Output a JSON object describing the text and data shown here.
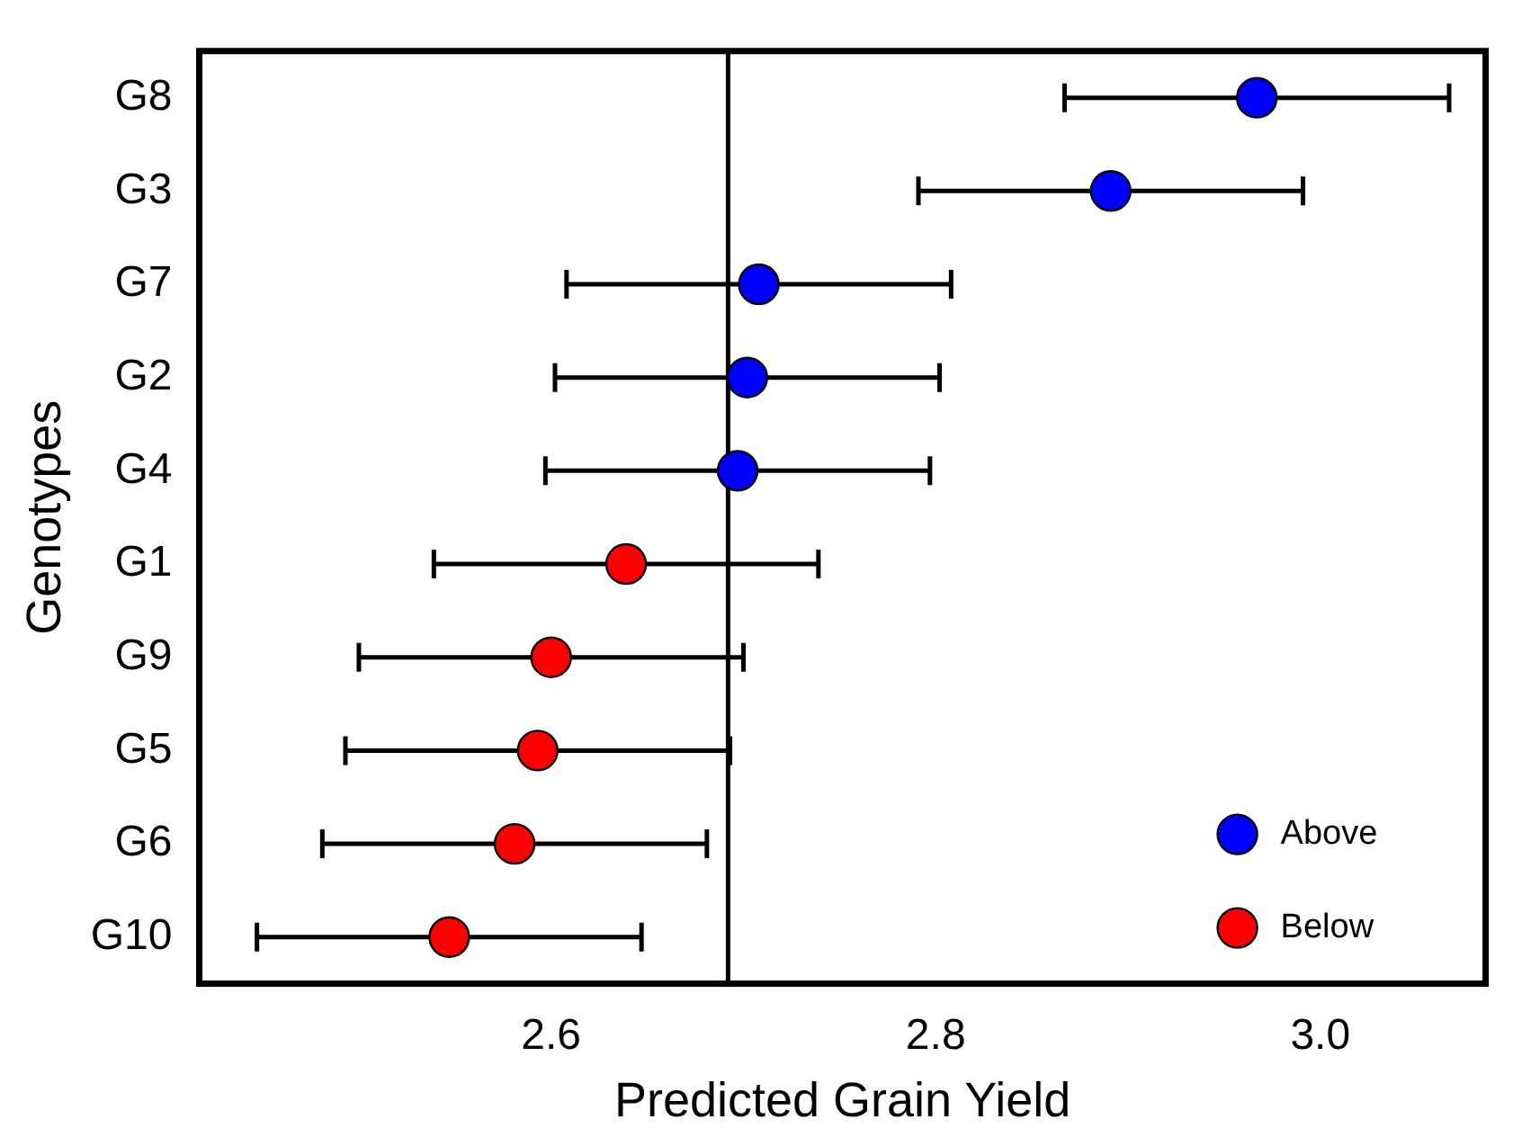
{
  "chart_data": {
    "type": "scatter",
    "orientation": "horizontal",
    "xlabel": "Predicted Grain Yield",
    "ylabel": "Genotypes",
    "categories": [
      "G8",
      "G3",
      "G7",
      "G2",
      "G4",
      "G1",
      "G9",
      "G5",
      "G6",
      "G10"
    ],
    "series": [
      {
        "name": "Above",
        "color": "#0000ff",
        "values": [
          2.967,
          2.891,
          2.708,
          2.702,
          2.697,
          null,
          null,
          null,
          null,
          null
        ],
        "errors": [
          0.1,
          0.1,
          0.1,
          0.1,
          0.1,
          null,
          null,
          null,
          null,
          null
        ]
      },
      {
        "name": "Below",
        "color": "#ff0000",
        "values": [
          null,
          null,
          null,
          null,
          null,
          2.639,
          2.6,
          2.593,
          2.581,
          2.547
        ],
        "errors": [
          null,
          null,
          null,
          null,
          null,
          0.1,
          0.1,
          0.1,
          0.1,
          0.1
        ]
      }
    ],
    "xlim": [
      2.417,
      3.086
    ],
    "xticks": [
      2.6,
      2.8,
      {
        "value": 3,
        "label": "3.0"
      }
    ],
    "ref_lines": [
      {
        "axis": "x",
        "value": 2.692,
        "color": "#000000"
      }
    ],
    "grid": false,
    "legend": "bottom right",
    "marker": "circle"
  }
}
